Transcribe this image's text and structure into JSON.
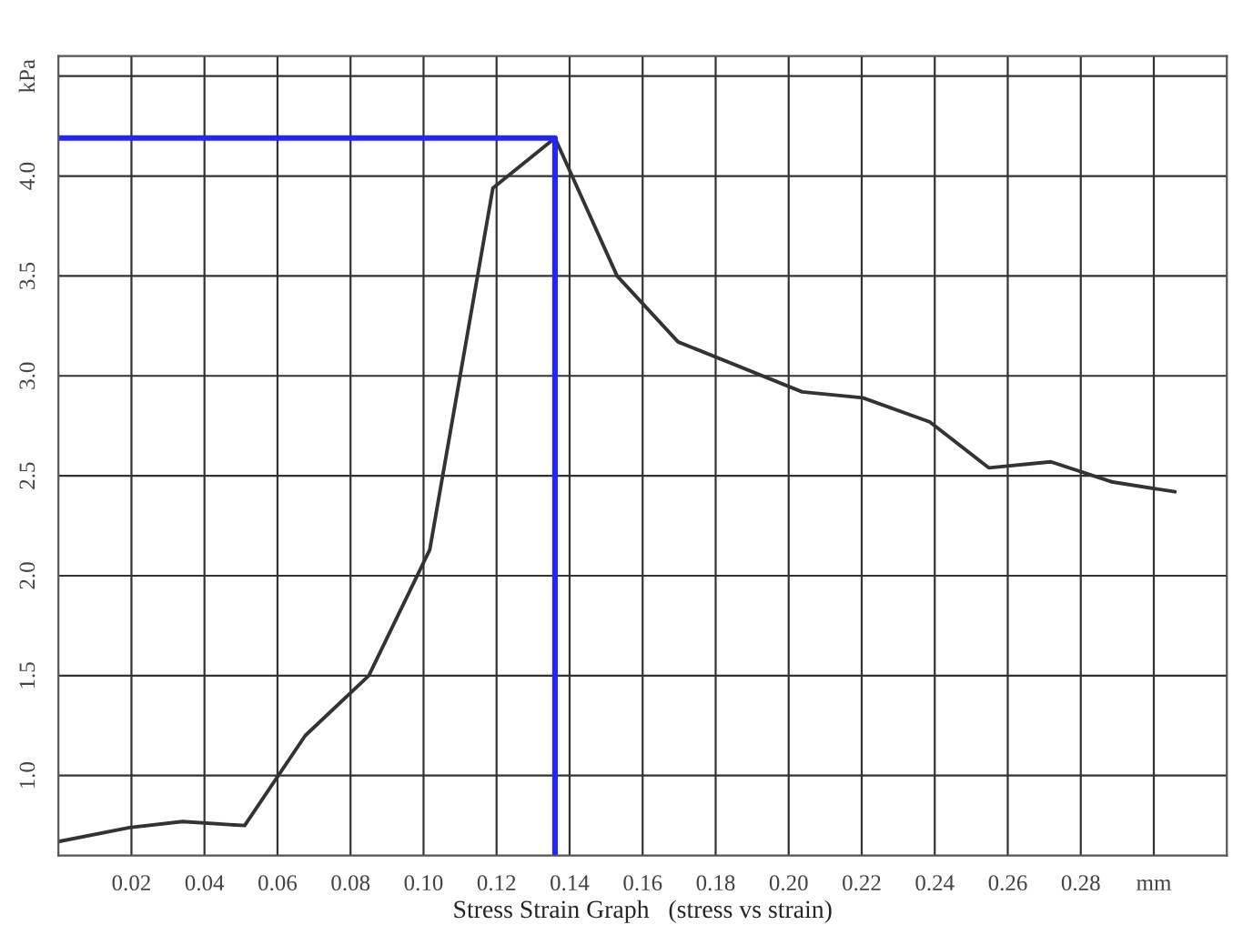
{
  "chart_data": {
    "type": "line",
    "xlabel": "Stress Strain Graph   (stress vs strain)",
    "series": [
      {
        "color": "#333333",
        "x": [
          0.0,
          0.0195,
          0.034,
          0.051,
          0.0676,
          0.085,
          0.1017,
          0.119,
          0.136,
          0.153,
          0.1697,
          0.2037,
          0.2203,
          0.2386,
          0.2548,
          0.2718,
          0.2884,
          0.3058
        ],
        "values": [
          0.67,
          0.74,
          0.77,
          0.75,
          1.2,
          1.5,
          2.13,
          3.94,
          4.19,
          3.5,
          3.17,
          2.92,
          2.89,
          2.77,
          2.54,
          2.57,
          2.47,
          2.42
        ]
      },
      {
        "color": "#2424ff",
        "x": [
          0.0,
          0.136,
          0.136
        ],
        "values": [
          4.19,
          4.19,
          0.6
        ]
      }
    ],
    "xlim": [
      0,
      0.32
    ],
    "xticks": [
      0.02,
      0.04,
      0.06,
      0.08,
      {
        "value": 0.1,
        "label": "0.10"
      },
      0.12,
      0.14,
      0.16,
      0.18,
      {
        "value": 0.2,
        "label": "0.20"
      },
      0.22,
      0.24,
      0.26,
      0.28,
      {
        "value": 0.3,
        "label": "mm"
      }
    ],
    "ylim": [
      0.6,
      4.6
    ],
    "yticks": [
      {
        "value": 1,
        "label": "1.0"
      },
      1.5,
      {
        "value": 2,
        "label": "2.0"
      },
      2.5,
      {
        "value": 3,
        "label": "3.0"
      },
      3.5,
      {
        "value": 4,
        "label": "4.0"
      },
      {
        "value": 4.5,
        "label": "kPa"
      }
    ],
    "grid": true,
    "legend": false,
    "marker": "none",
    "line_style": "solid"
  }
}
